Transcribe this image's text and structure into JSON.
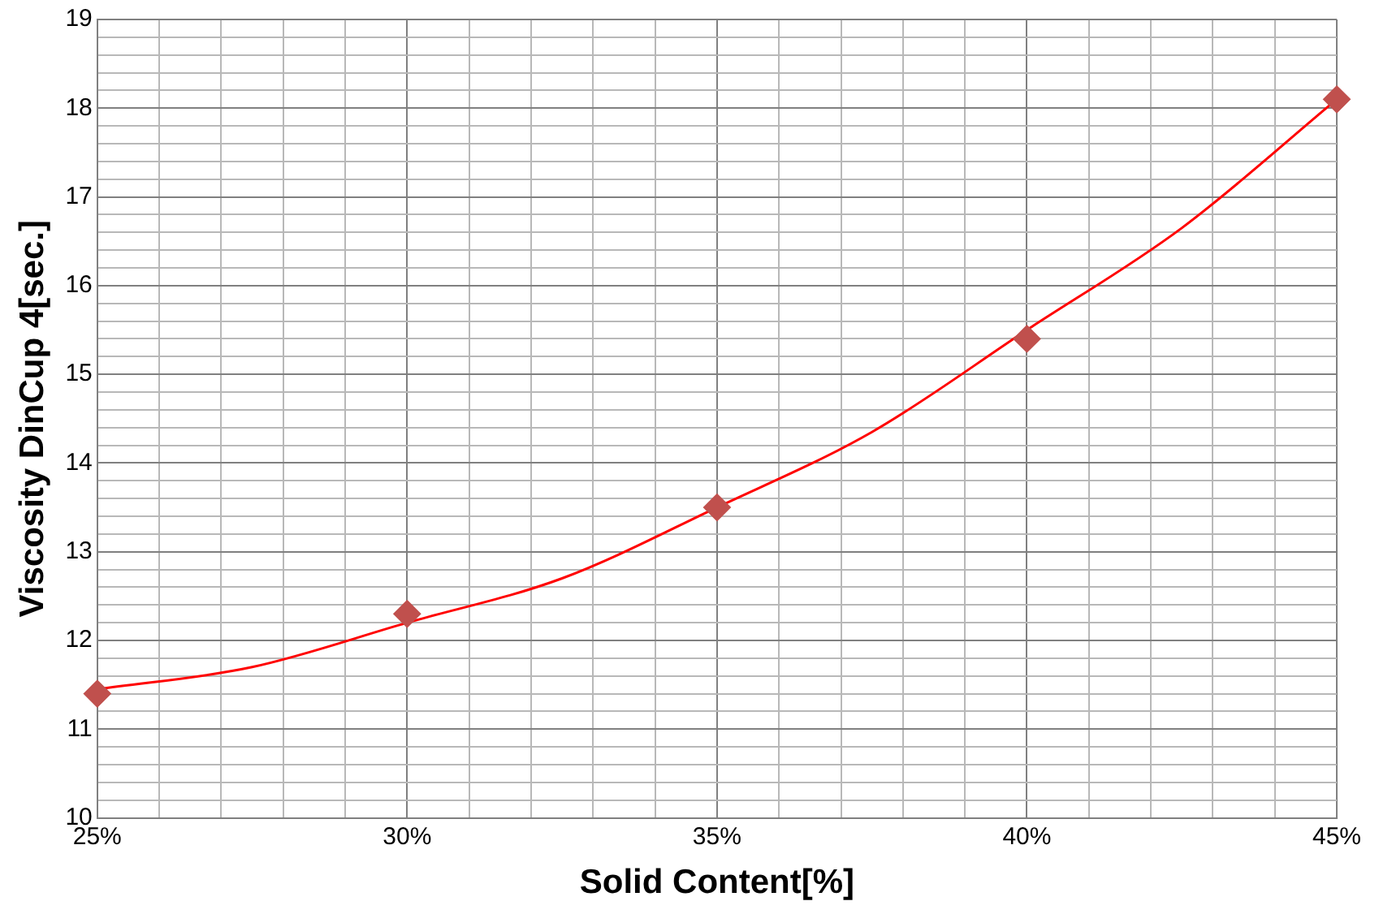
{
  "chart_data": {
    "type": "scatter",
    "xlabel": "Solid Content[%]",
    "ylabel": "Viscosity DinCup 4[sec.]",
    "xlim": [
      25,
      45
    ],
    "xticks": [
      {
        "value": 25,
        "label": "25%"
      },
      {
        "value": 26,
        "label": null
      },
      {
        "value": 27,
        "label": null
      },
      {
        "value": 28,
        "label": null
      },
      {
        "value": 29,
        "label": null
      },
      {
        "value": 30,
        "label": "30%"
      },
      {
        "value": 31,
        "label": null
      },
      {
        "value": 32,
        "label": null
      },
      {
        "value": 33,
        "label": null
      },
      {
        "value": 34,
        "label": null
      },
      {
        "value": 35,
        "label": "35%"
      },
      {
        "value": 36,
        "label": null
      },
      {
        "value": 37,
        "label": null
      },
      {
        "value": 38,
        "label": null
      },
      {
        "value": 39,
        "label": null
      },
      {
        "value": 40,
        "label": "40%"
      },
      {
        "value": 41,
        "label": null
      },
      {
        "value": 42,
        "label": null
      },
      {
        "value": 43,
        "label": null
      },
      {
        "value": 44,
        "label": null
      },
      {
        "value": 45,
        "label": "45%"
      }
    ],
    "ylim": [
      10,
      19
    ],
    "yticks": [
      10,
      {
        "value": 10.2,
        "label": null
      },
      {
        "value": 10.4,
        "label": null
      },
      {
        "value": 10.6,
        "label": null
      },
      {
        "value": 10.8,
        "label": null
      },
      11,
      {
        "value": 11.2,
        "label": null
      },
      {
        "value": 11.4,
        "label": null
      },
      {
        "value": 11.6,
        "label": null
      },
      {
        "value": 11.8,
        "label": null
      },
      12,
      {
        "value": 12.2,
        "label": null
      },
      {
        "value": 12.4,
        "label": null
      },
      {
        "value": 12.6,
        "label": null
      },
      {
        "value": 12.8,
        "label": null
      },
      13,
      {
        "value": 13.2,
        "label": null
      },
      {
        "value": 13.4,
        "label": null
      },
      {
        "value": 13.6,
        "label": null
      },
      {
        "value": 13.8,
        "label": null
      },
      14,
      {
        "value": 14.2,
        "label": null
      },
      {
        "value": 14.4,
        "label": null
      },
      {
        "value": 14.6,
        "label": null
      },
      {
        "value": 14.8,
        "label": null
      },
      15,
      {
        "value": 15.2,
        "label": null
      },
      {
        "value": 15.4,
        "label": null
      },
      {
        "value": 15.6,
        "label": null
      },
      {
        "value": 15.8,
        "label": null
      },
      16,
      {
        "value": 16.2,
        "label": null
      },
      {
        "value": 16.4,
        "label": null
      },
      {
        "value": 16.6,
        "label": null
      },
      {
        "value": 16.8,
        "label": null
      },
      17,
      {
        "value": 17.2,
        "label": null
      },
      {
        "value": 17.4,
        "label": null
      },
      {
        "value": 17.6,
        "label": null
      },
      {
        "value": 17.8,
        "label": null
      },
      18,
      {
        "value": 18.2,
        "label": null
      },
      {
        "value": 18.4,
        "label": null
      },
      {
        "value": 18.6,
        "label": null
      },
      {
        "value": 18.8,
        "label": null
      },
      19
    ],
    "grid": true,
    "legend": false,
    "series": [
      {
        "color": "#c0504d",
        "marker": "diamond",
        "x": [
          25,
          30,
          35,
          40,
          45
        ],
        "values": [
          11.4,
          12.3,
          13.5,
          15.4,
          18.1
        ]
      },
      {
        "type": "line",
        "color": "#ff0000",
        "marker": "none",
        "x": [
          25,
          27.5,
          30,
          32.5,
          35,
          37.5,
          40,
          42.5,
          45
        ],
        "values": [
          11.45,
          11.7,
          12.2,
          12.7,
          13.5,
          14.35,
          15.5,
          16.65,
          18.1
        ]
      }
    ]
  }
}
